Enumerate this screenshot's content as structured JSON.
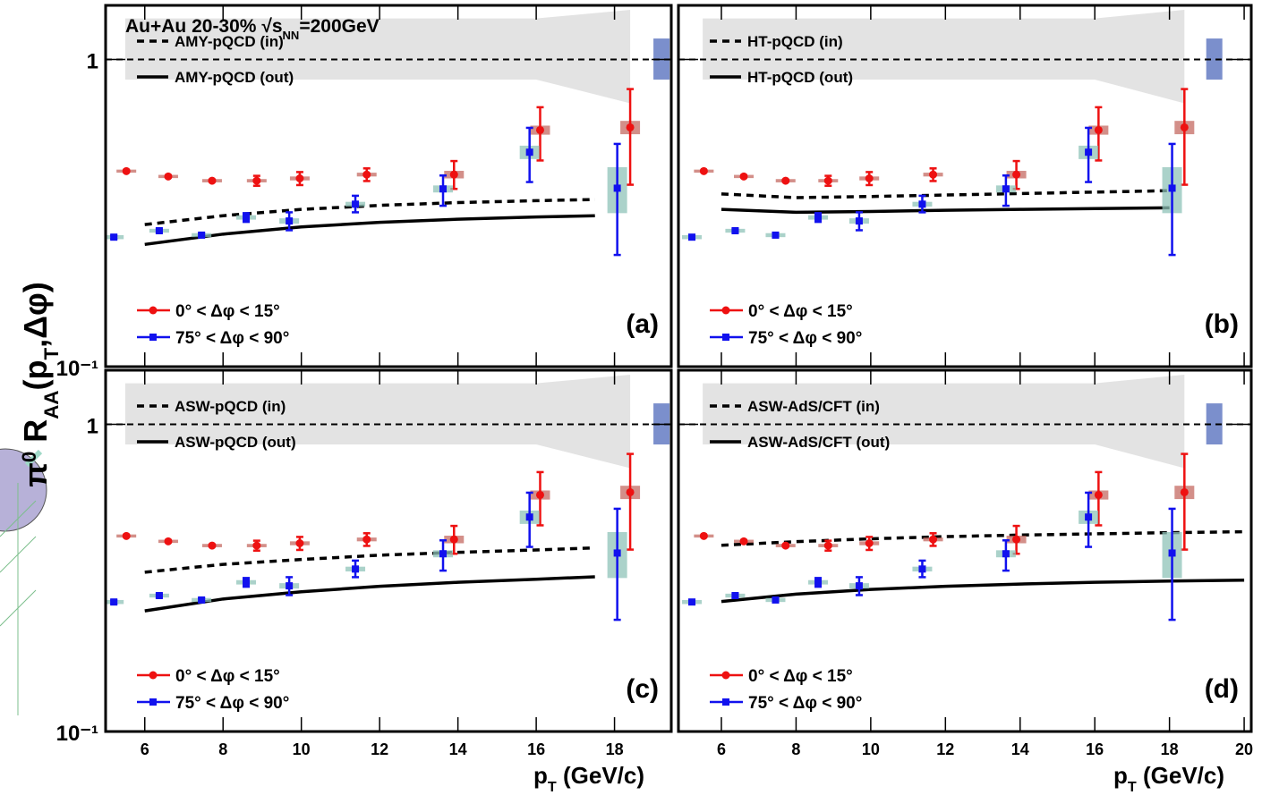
{
  "chart_data": {
    "type": "scatter",
    "title_parts": [
      "Au+Au 20-30% ",
      "√",
      "s",
      "NN",
      "=200GeV"
    ],
    "ylabel_parts": [
      "π",
      "0",
      " R",
      "AA",
      "(p",
      "T",
      ",Δφ)"
    ],
    "xlabel_parts": [
      "p",
      "T",
      " (GeV/c)"
    ],
    "yscale": "log",
    "ylim": [
      0.1,
      1.5
    ],
    "yticks": [
      {
        "value": 0.1,
        "label": "10⁻¹"
      },
      1
    ],
    "xaxes": [
      {
        "xlim": [
          5.0,
          19.45
        ],
        "xticks": [
          6,
          8,
          10,
          12,
          14,
          16,
          18
        ]
      },
      {
        "xlim": [
          4.85,
          20.19
        ],
        "xticks": [
          6,
          8,
          10,
          12,
          14,
          16,
          18,
          20
        ]
      }
    ],
    "reference": 1,
    "band": {
      "x": [
        5.5,
        16,
        18.4
      ],
      "lo": [
        0.86,
        0.86,
        0.72
      ],
      "hi": [
        1.36,
        1.36,
        1.45
      ],
      "color": "#e3e3e3"
    },
    "norm_box": {
      "x": 19.2,
      "lo": 0.86,
      "hi": 1.17,
      "color": "#7b8fcc"
    },
    "series": [
      {
        "name": "0° < Δφ < 15°",
        "color": "#ee1111",
        "sys_color": "#c46a62",
        "marker": "circle",
        "x": [
          5.53,
          6.6,
          7.72,
          8.86,
          9.96,
          11.67,
          13.9,
          16.1,
          18.4
        ],
        "values": [
          0.433,
          0.416,
          0.403,
          0.403,
          0.41,
          0.422,
          0.422,
          0.589,
          0.601
        ],
        "err_minus": [
          0.003,
          0.003,
          0.003,
          0.015,
          0.02,
          0.02,
          0.043,
          0.12,
          0.21
        ],
        "err_plus": [
          0.003,
          0.003,
          0.003,
          0.015,
          0.02,
          0.02,
          0.045,
          0.11,
          0.2
        ],
        "sys": [
          0.005,
          0.005,
          0.005,
          0.005,
          0.006,
          0.006,
          0.012,
          0.02,
          0.03
        ]
      },
      {
        "name": "75° < Δφ < 90°",
        "color": "#1111ee",
        "sys_color": "#8fc3b8",
        "marker": "square",
        "x": [
          5.21,
          6.37,
          7.45,
          8.59,
          9.69,
          11.38,
          13.62,
          15.83,
          18.07
        ],
        "values": [
          0.264,
          0.277,
          0.268,
          0.306,
          0.298,
          0.338,
          0.379,
          0.499,
          0.381
        ],
        "err_minus": [
          0.003,
          0.003,
          0.003,
          0.01,
          0.02,
          0.02,
          0.045,
          0.1,
          0.15
        ],
        "err_plus": [
          0.003,
          0.003,
          0.003,
          0.01,
          0.02,
          0.022,
          0.04,
          0.1,
          0.15
        ],
        "sys": [
          0.004,
          0.004,
          0.004,
          0.005,
          0.006,
          0.006,
          0.01,
          0.025,
          0.065
        ]
      }
    ],
    "panels": [
      {
        "label": "(a)",
        "curves": [
          {
            "name": "AMY-pQCD (in)",
            "dashed": true,
            "x": [
              6,
              8,
              10,
              12,
              14,
              16,
              17.5
            ],
            "values": [
              0.29,
              0.31,
              0.325,
              0.335,
              0.342,
              0.347,
              0.35
            ]
          },
          {
            "name": "AMY-pQCD (out)",
            "dashed": false,
            "x": [
              6,
              8,
              10,
              12,
              14,
              16,
              17.5
            ],
            "values": [
              0.25,
              0.27,
              0.285,
              0.295,
              0.302,
              0.307,
              0.31
            ]
          }
        ]
      },
      {
        "label": "(b)",
        "curves": [
          {
            "name": "HT-pQCD (in)",
            "dashed": true,
            "x": [
              6,
              8,
              10,
              12,
              14,
              16,
              18
            ],
            "values": [
              0.365,
              0.355,
              0.358,
              0.362,
              0.366,
              0.37,
              0.374
            ]
          },
          {
            "name": "HT-pQCD (out)",
            "dashed": false,
            "x": [
              6,
              8,
              10,
              12,
              14,
              16,
              18
            ],
            "values": [
              0.325,
              0.318,
              0.32,
              0.323,
              0.325,
              0.327,
              0.329
            ]
          }
        ]
      },
      {
        "label": "(c)",
        "curves": [
          {
            "name": "ASW-pQCD (in)",
            "dashed": true,
            "x": [
              6,
              8,
              10,
              12,
              14,
              16,
              17.5
            ],
            "values": [
              0.33,
              0.35,
              0.363,
              0.375,
              0.383,
              0.39,
              0.396
            ]
          },
          {
            "name": "ASW-pQCD (out)",
            "dashed": false,
            "x": [
              6,
              8,
              10,
              12,
              14,
              16,
              17.5
            ],
            "values": [
              0.247,
              0.27,
              0.285,
              0.297,
              0.306,
              0.313,
              0.319
            ]
          }
        ]
      },
      {
        "label": "(d)",
        "curves": [
          {
            "name": "ASW-AdS/CFT (in)",
            "dashed": true,
            "x": [
              6,
              8,
              10,
              12,
              14,
              16,
              18,
              20
            ],
            "values": [
              0.404,
              0.415,
              0.424,
              0.431,
              0.436,
              0.44,
              0.444,
              0.447
            ]
          },
          {
            "name": "ASW-AdS/CFT (out)",
            "dashed": false,
            "x": [
              6,
              8,
              10,
              12,
              14,
              16,
              18,
              20
            ],
            "values": [
              0.265,
              0.28,
              0.29,
              0.297,
              0.302,
              0.306,
              0.309,
              0.311
            ]
          }
        ]
      }
    ]
  }
}
